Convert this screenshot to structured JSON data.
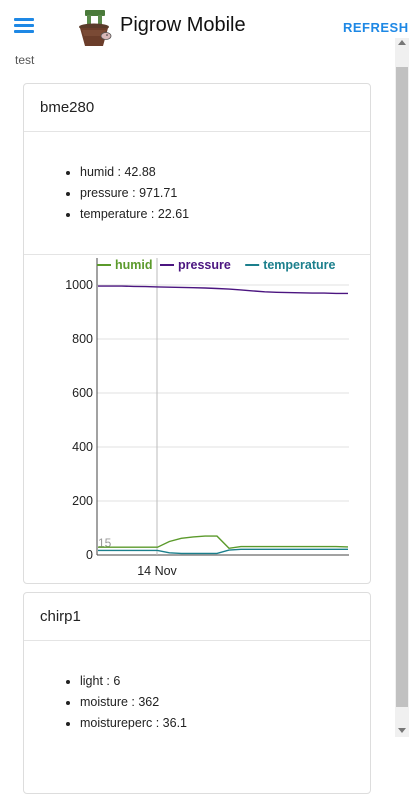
{
  "app": {
    "title": "Pigrow Mobile",
    "refresh_label": "REFRESH",
    "subtitle": "test"
  },
  "cards": [
    {
      "name": "bme280",
      "readings": [
        {
          "key": "humid",
          "value": "42.88"
        },
        {
          "key": "pressure",
          "value": "971.71"
        },
        {
          "key": "temperature",
          "value": "22.61"
        }
      ]
    },
    {
      "name": "chirp1",
      "readings": [
        {
          "key": "light",
          "value": "6"
        },
        {
          "key": "moisture",
          "value": "362"
        },
        {
          "key": "moistureperc",
          "value": "36.1"
        }
      ]
    }
  ],
  "chart_data": {
    "type": "line",
    "ylim": [
      0,
      1100
    ],
    "yticks": [
      0,
      200,
      400,
      600,
      800,
      1000
    ],
    "xtick_labels": [
      "14 Nov"
    ],
    "small_label": "15",
    "legend_position": "top",
    "grid": true,
    "series": [
      {
        "name": "humid",
        "color": "#5b9a2b",
        "values": [
          29,
          29,
          29,
          29,
          29,
          29,
          50,
          62,
          67,
          70,
          70,
          25,
          31,
          31,
          31,
          31,
          31,
          31,
          31,
          31,
          31,
          30
        ]
      },
      {
        "name": "pressure",
        "color": "#4b1580",
        "values": [
          996,
          996,
          996,
          995,
          994,
          993,
          992,
          991,
          990,
          989,
          987,
          985,
          982,
          978,
          975,
          973,
          972,
          971,
          970,
          970,
          969,
          969
        ]
      },
      {
        "name": "temperature",
        "color": "#1b7f8c",
        "values": [
          17,
          17,
          17,
          17,
          17,
          17,
          8,
          6,
          6,
          6,
          6,
          18,
          21,
          21,
          21,
          21,
          21,
          21,
          21,
          21,
          21,
          21
        ]
      }
    ]
  },
  "colors": {
    "accent": "#1e88e5"
  }
}
